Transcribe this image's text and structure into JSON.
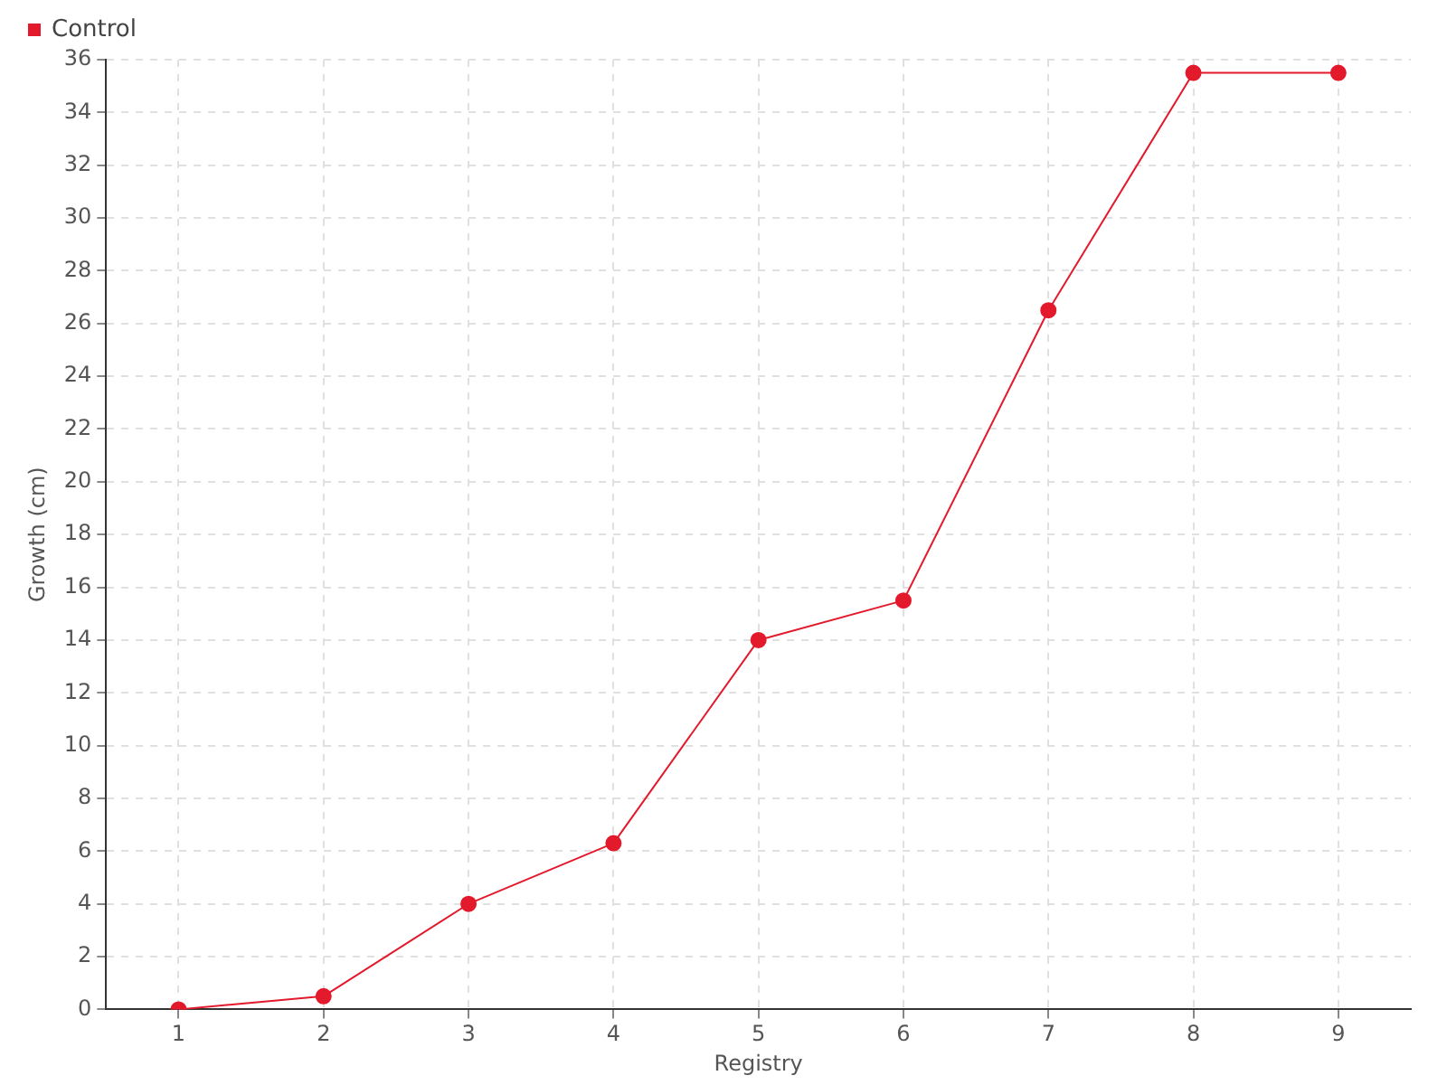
{
  "chart_data": {
    "type": "line",
    "xlabel": "Registry",
    "ylabel": "Growth (cm)",
    "categories": [
      "1",
      "2",
      "3",
      "4",
      "5",
      "6",
      "7",
      "8",
      "9"
    ],
    "series": [
      {
        "name": "Control",
        "color": "#e31a2c",
        "values": [
          0,
          0.5,
          4,
          6.3,
          14,
          15.5,
          26.5,
          35.5,
          35.5
        ]
      }
    ],
    "ylim": [
      0,
      36
    ],
    "yticks": [
      0,
      2,
      4,
      6,
      8,
      10,
      12,
      14,
      16,
      18,
      20,
      22,
      24,
      26,
      28,
      30,
      32,
      34,
      36
    ],
    "grid": true,
    "legend": "top left",
    "marker": "circle",
    "line_style": "solid"
  }
}
